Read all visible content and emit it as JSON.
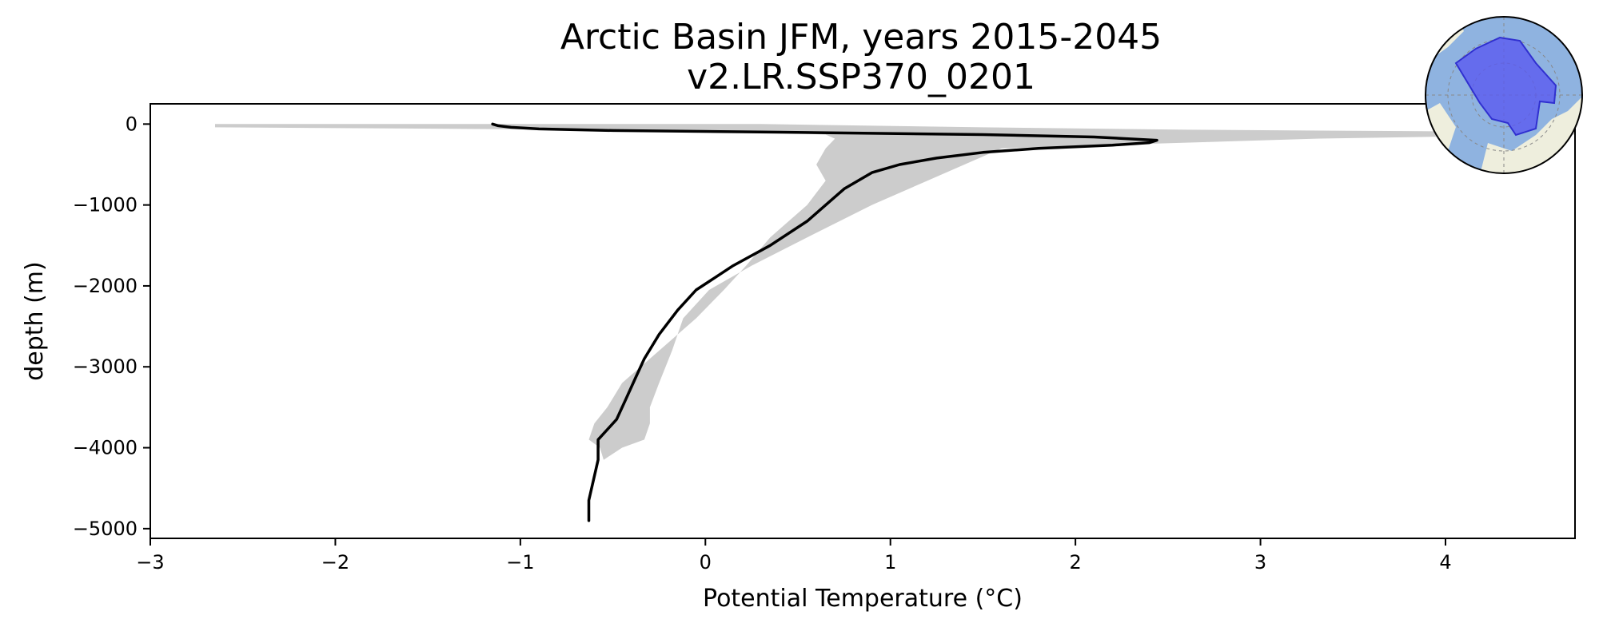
{
  "chart_data": {
    "type": "line",
    "title": "Arctic Basin JFM, years 2015-2045",
    "subtitle": "v2.LR.SSP370_0201",
    "xlabel": "Potential Temperature (°C)",
    "ylabel": "depth (m)",
    "xlim": [
      -3.0,
      4.7
    ],
    "ylim": [
      -5120,
      250
    ],
    "xticks": [
      -3,
      -2,
      -1,
      0,
      1,
      2,
      3,
      4
    ],
    "yticks": [
      0,
      -1000,
      -2000,
      -3000,
      -4000,
      -5000
    ],
    "xtick_labels": [
      "−3",
      "−2",
      "−1",
      "0",
      "1",
      "2",
      "3",
      "4"
    ],
    "ytick_labels": [
      "0",
      "−1000",
      "−2000",
      "−3000",
      "−4000",
      "−5000"
    ],
    "grid": false,
    "series": [
      {
        "color": "#000000",
        "x": [
          -1.15,
          -1.12,
          -1.05,
          -0.9,
          -0.5,
          0.4,
          1.5,
          2.1,
          2.44,
          2.4,
          2.2,
          1.8,
          1.5,
          1.25,
          1.05,
          0.9,
          0.75,
          0.55,
          0.35,
          0.15,
          0.05,
          -0.05,
          -0.15,
          -0.25,
          -0.33,
          -0.38,
          -0.43,
          -0.48,
          -0.58,
          -0.58,
          -0.63,
          -0.63
        ],
        "y": [
          0,
          -20,
          -40,
          -60,
          -80,
          -100,
          -130,
          -160,
          -200,
          -230,
          -260,
          -300,
          -350,
          -420,
          -500,
          -600,
          -800,
          -1200,
          -1500,
          -1750,
          -1900,
          -2050,
          -2300,
          -2600,
          -2900,
          -3150,
          -3400,
          -3650,
          -3900,
          -4150,
          -4650,
          -4900
        ]
      }
    ],
    "band": {
      "color": "#cccccc",
      "x_low": [
        -2.65,
        -2.65,
        -0.6,
        0.3,
        0.65,
        0.7,
        0.65,
        0.6,
        0.65,
        0.55,
        0.35,
        0.22,
        0.1,
        -0.05,
        -0.25,
        -0.45,
        -0.53,
        -0.6,
        -0.63,
        -0.57,
        -0.55
      ],
      "x_high": [
        0.3,
        1.5,
        2.6,
        4.7,
        4.7,
        3.3,
        1.6,
        1.4,
        1.2,
        0.9,
        0.55,
        0.25,
        0.02,
        -0.12,
        -0.18,
        -0.25,
        -0.3,
        -0.3,
        -0.33,
        -0.45,
        -0.55
      ],
      "y": [
        0,
        -40,
        -70,
        -100,
        -130,
        -180,
        -300,
        -500,
        -700,
        -1000,
        -1400,
        -1750,
        -2050,
        -2400,
        -2800,
        -3200,
        -3500,
        -3700,
        -3900,
        -4000,
        -4150
      ]
    }
  },
  "inset_map": {
    "name": "arctic-basin-region-map",
    "ocean_color": "#8fb3e0",
    "land_color": "#eeeedd",
    "region_color": "#5a5af0"
  }
}
